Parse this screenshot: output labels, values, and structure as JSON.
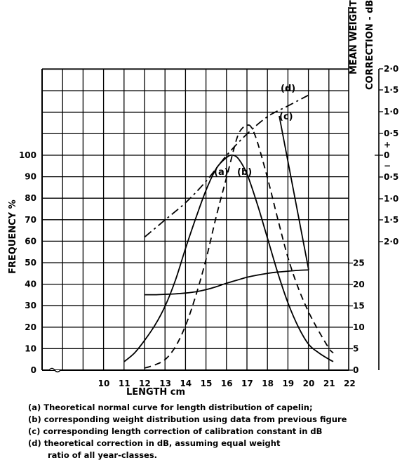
{
  "chart_data": {
    "type": "line",
    "xlabel": "LENGTH cm",
    "ylabel": "FREQUENCY %",
    "y2label": "MEAN WEIGHT - g",
    "y3label": "CORRECTION - dB",
    "x_ticks": [
      "10",
      "11",
      "12",
      "13",
      "14",
      "15",
      "16",
      "17",
      "18",
      "19",
      "20",
      "21",
      "22"
    ],
    "xlim": [
      9,
      22.5
    ],
    "ylim": [
      0,
      130
    ],
    "y_ticks": [
      0,
      10,
      20,
      30,
      40,
      50,
      60,
      70,
      80,
      90,
      100
    ],
    "y2_ticks": [
      0,
      5,
      10,
      15,
      20,
      25
    ],
    "y3_ticks": [
      "2·0",
      "1·5",
      "1·0",
      "0·5",
      "+",
      "0",
      "−",
      "0·5",
      "1·0",
      "1·5",
      "2·0"
    ],
    "grid": true,
    "series": [
      {
        "name": "(a)",
        "axis": "frequency %",
        "style": "solid",
        "x": [
          11,
          11.5,
          12,
          12.5,
          13,
          13.5,
          14,
          14.5,
          15,
          15.5,
          16,
          16.3,
          16.6,
          17,
          17.5,
          18,
          18.5,
          19,
          19.5,
          20,
          20.5,
          21,
          21.2
        ],
        "y": [
          4,
          8,
          14,
          21,
          30,
          42,
          57,
          71,
          84,
          94,
          99,
          100,
          98,
          91,
          77,
          61,
          45,
          31,
          20,
          12,
          8,
          5,
          4
        ]
      },
      {
        "name": "(b)",
        "axis": "frequency %",
        "style": "dashed",
        "x": [
          12,
          12.5,
          13,
          13.5,
          14,
          14.5,
          15,
          15.5,
          16,
          16.5,
          16.8,
          17,
          17.2,
          17.5,
          18,
          18.5,
          19,
          19.5,
          20,
          20.5,
          21,
          21.2
        ],
        "y": [
          1,
          2.5,
          5,
          11,
          21,
          35,
          52,
          72,
          90,
          108,
          113,
          114,
          113,
          106,
          89,
          70,
          52,
          38,
          27,
          18,
          10,
          8
        ]
      },
      {
        "name": "(c)",
        "axis": "mean weight g",
        "style": "solid",
        "x": [
          12,
          12.5,
          13,
          13.5,
          14,
          14.5,
          15,
          15.5,
          16,
          16.5,
          17,
          17.5,
          18,
          18.5,
          19,
          19.5,
          20
        ],
        "y": [
          17.6,
          17.6,
          17.7,
          17.8,
          18.0,
          18.3,
          18.8,
          19.5,
          20.3,
          21.0,
          21.7,
          22.2,
          22.6,
          22.9,
          23.1,
          23.3,
          23.4
        ]
      },
      {
        "name": "(d)",
        "axis": "frequency %",
        "style": "dash-dot",
        "x": [
          12,
          13,
          14,
          15,
          16,
          17,
          18,
          19,
          20
        ],
        "y": [
          62,
          70,
          78,
          88,
          100,
          110,
          118,
          123,
          128
        ]
      }
    ]
  },
  "caption": {
    "a": "(a) Theoretical normal curve for length distribution of capelin;",
    "b": "(b) corresponding weight distribution using data from previous figure",
    "c": "(c) corresponding length correction of calibration constant in dB",
    "d": "(d) theoretical correction in dB, assuming equal weight",
    "d2": "ratio of all year-classes."
  }
}
